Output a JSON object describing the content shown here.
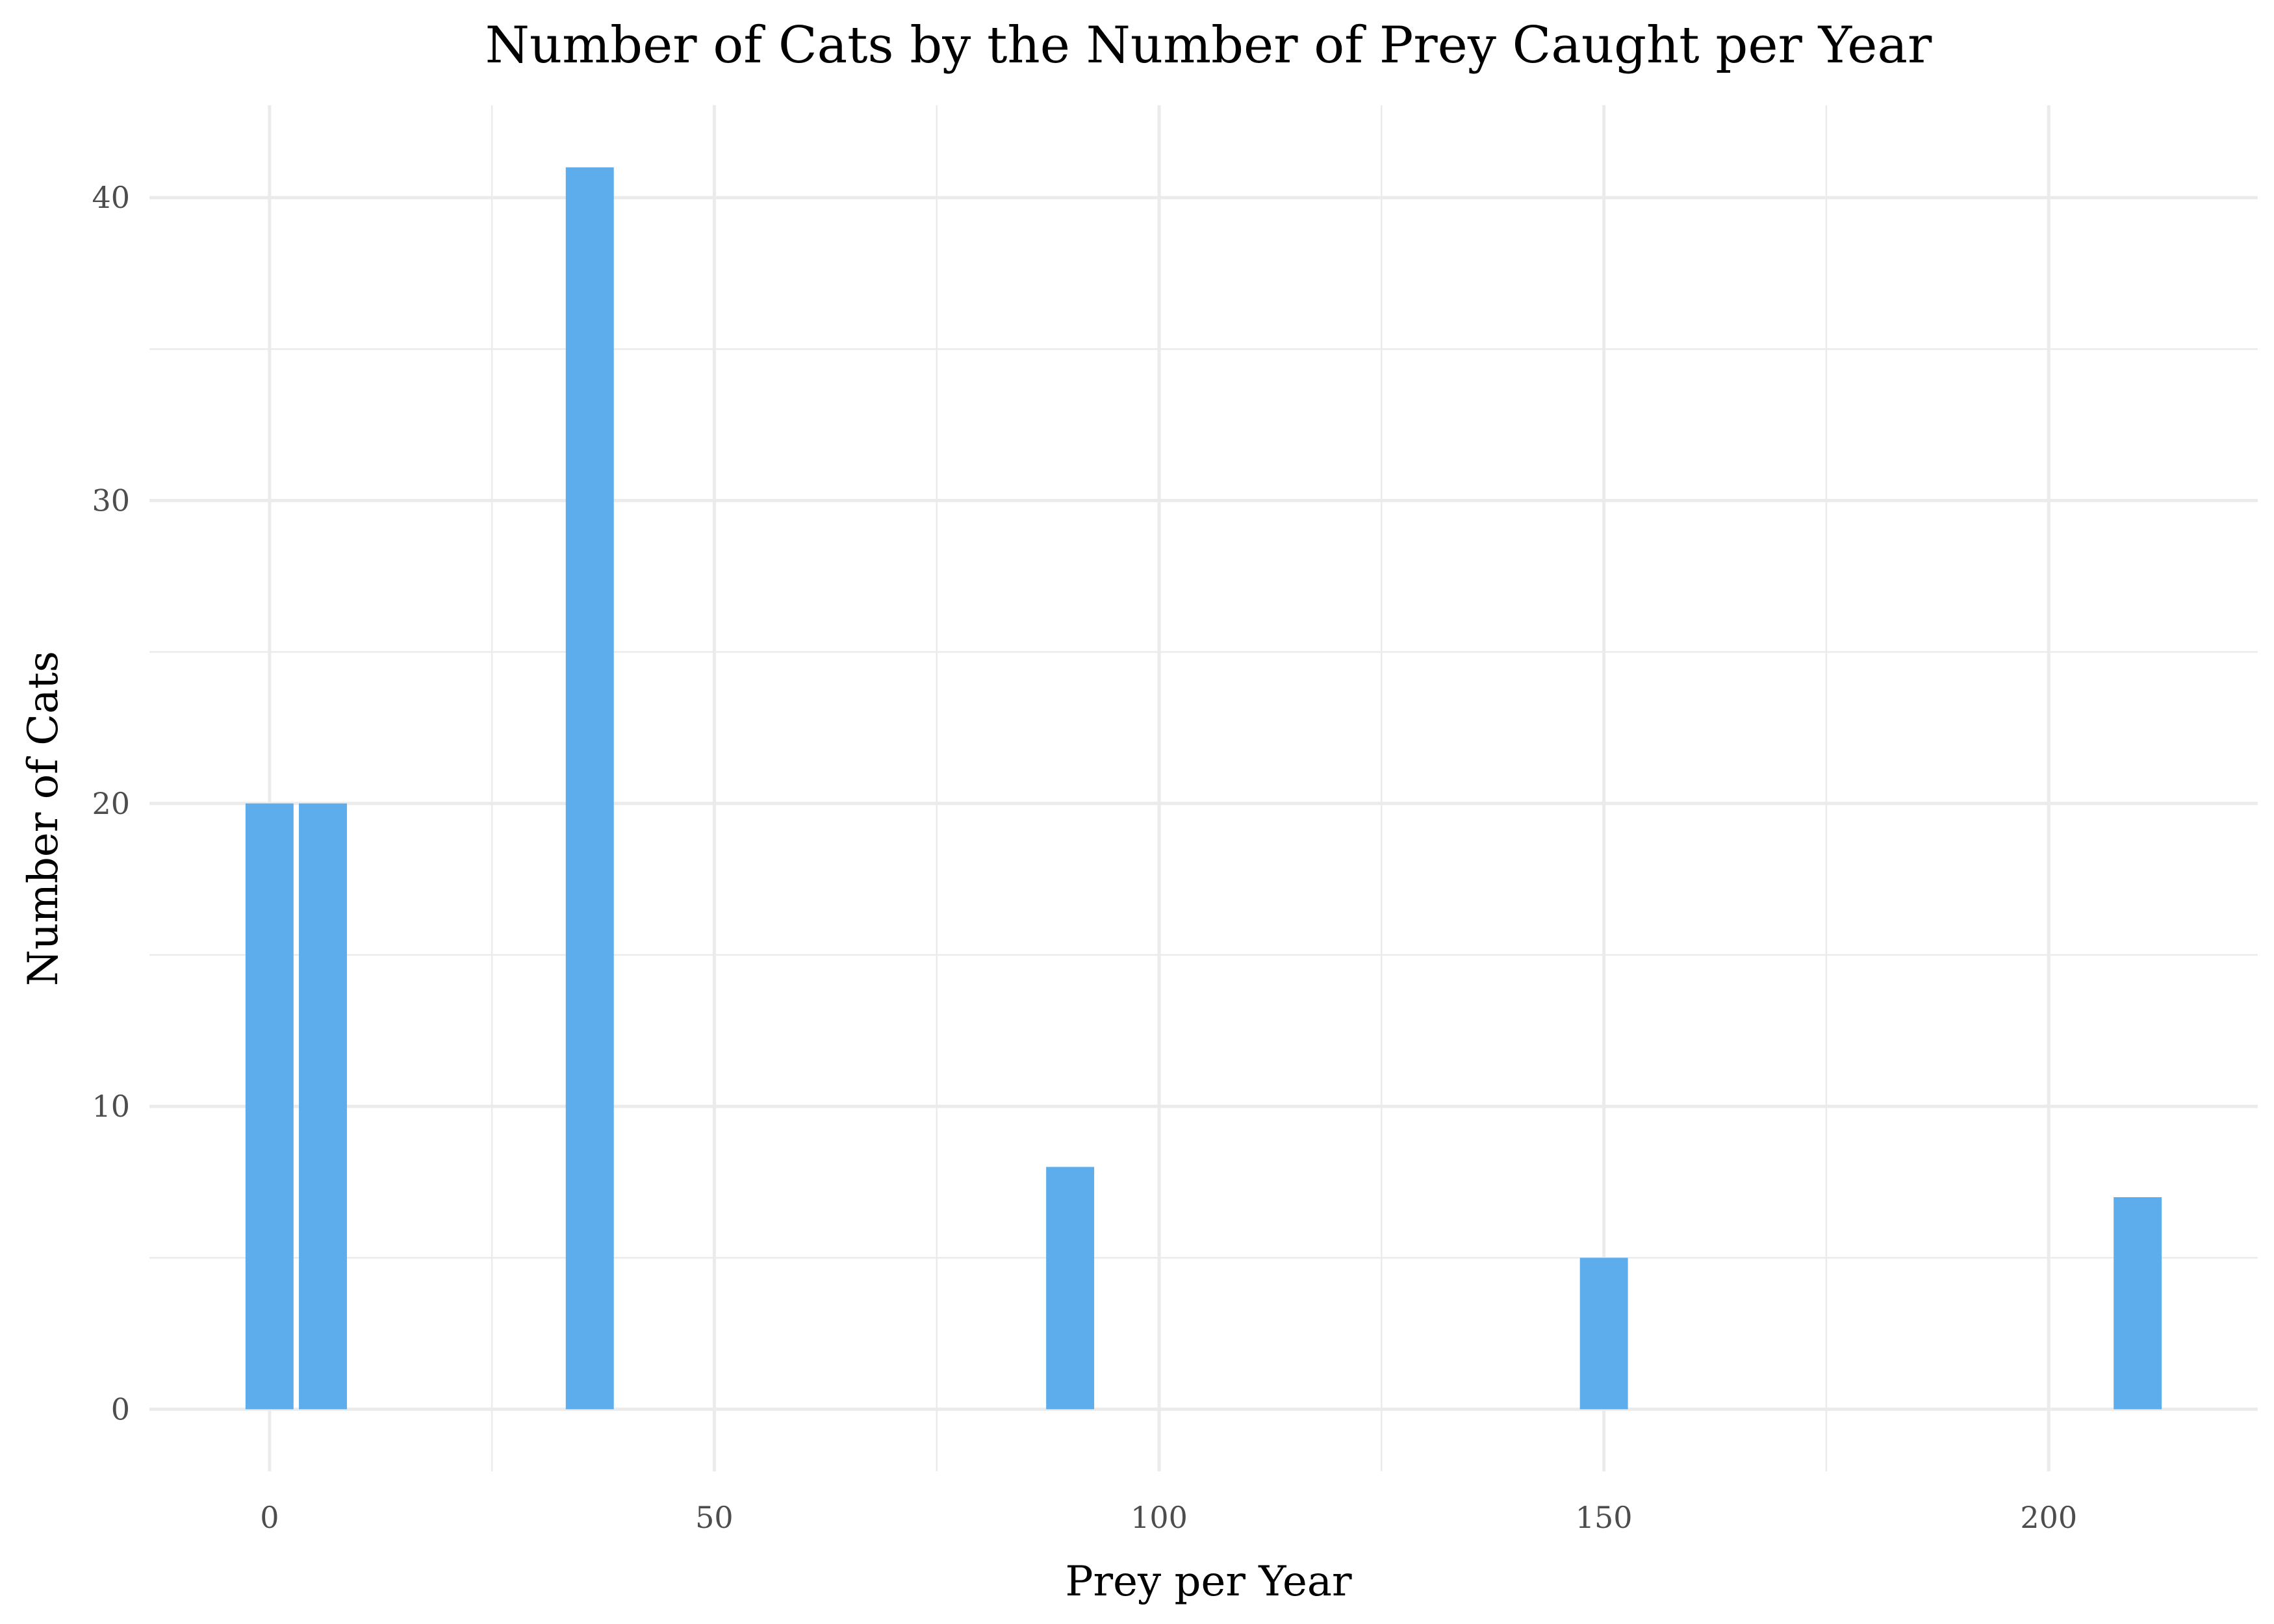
{
  "chart_data": {
    "type": "bar",
    "title": "Number of Cats by the Number of Prey Caught per Year",
    "xlabel": "Prey per Year",
    "ylabel": "Number of Cats",
    "bars": [
      {
        "x": 0,
        "value": 20
      },
      {
        "x": 6,
        "value": 20
      },
      {
        "x": 36,
        "value": 41
      },
      {
        "x": 90,
        "value": 8
      },
      {
        "x": 150,
        "value": 5
      },
      {
        "x": 210,
        "value": 7
      }
    ],
    "bar_width": 5.4,
    "xlim": [
      -13.5,
      223.5
    ],
    "ylim": [
      -2.05,
      43.05
    ],
    "x_ticks": [
      0,
      50,
      100,
      150,
      200
    ],
    "x_tick_labels": [
      "0",
      "50",
      "100",
      "150",
      "200"
    ],
    "x_minor_ticks": [
      25,
      75,
      125,
      175
    ],
    "y_ticks": [
      0,
      10,
      20,
      30,
      40
    ],
    "y_tick_labels": [
      "0",
      "10",
      "20",
      "30",
      "40"
    ],
    "y_minor_ticks": [
      5,
      15,
      25,
      35
    ],
    "grid": true,
    "legend": "none",
    "bar_color": "#5DADEC"
  }
}
